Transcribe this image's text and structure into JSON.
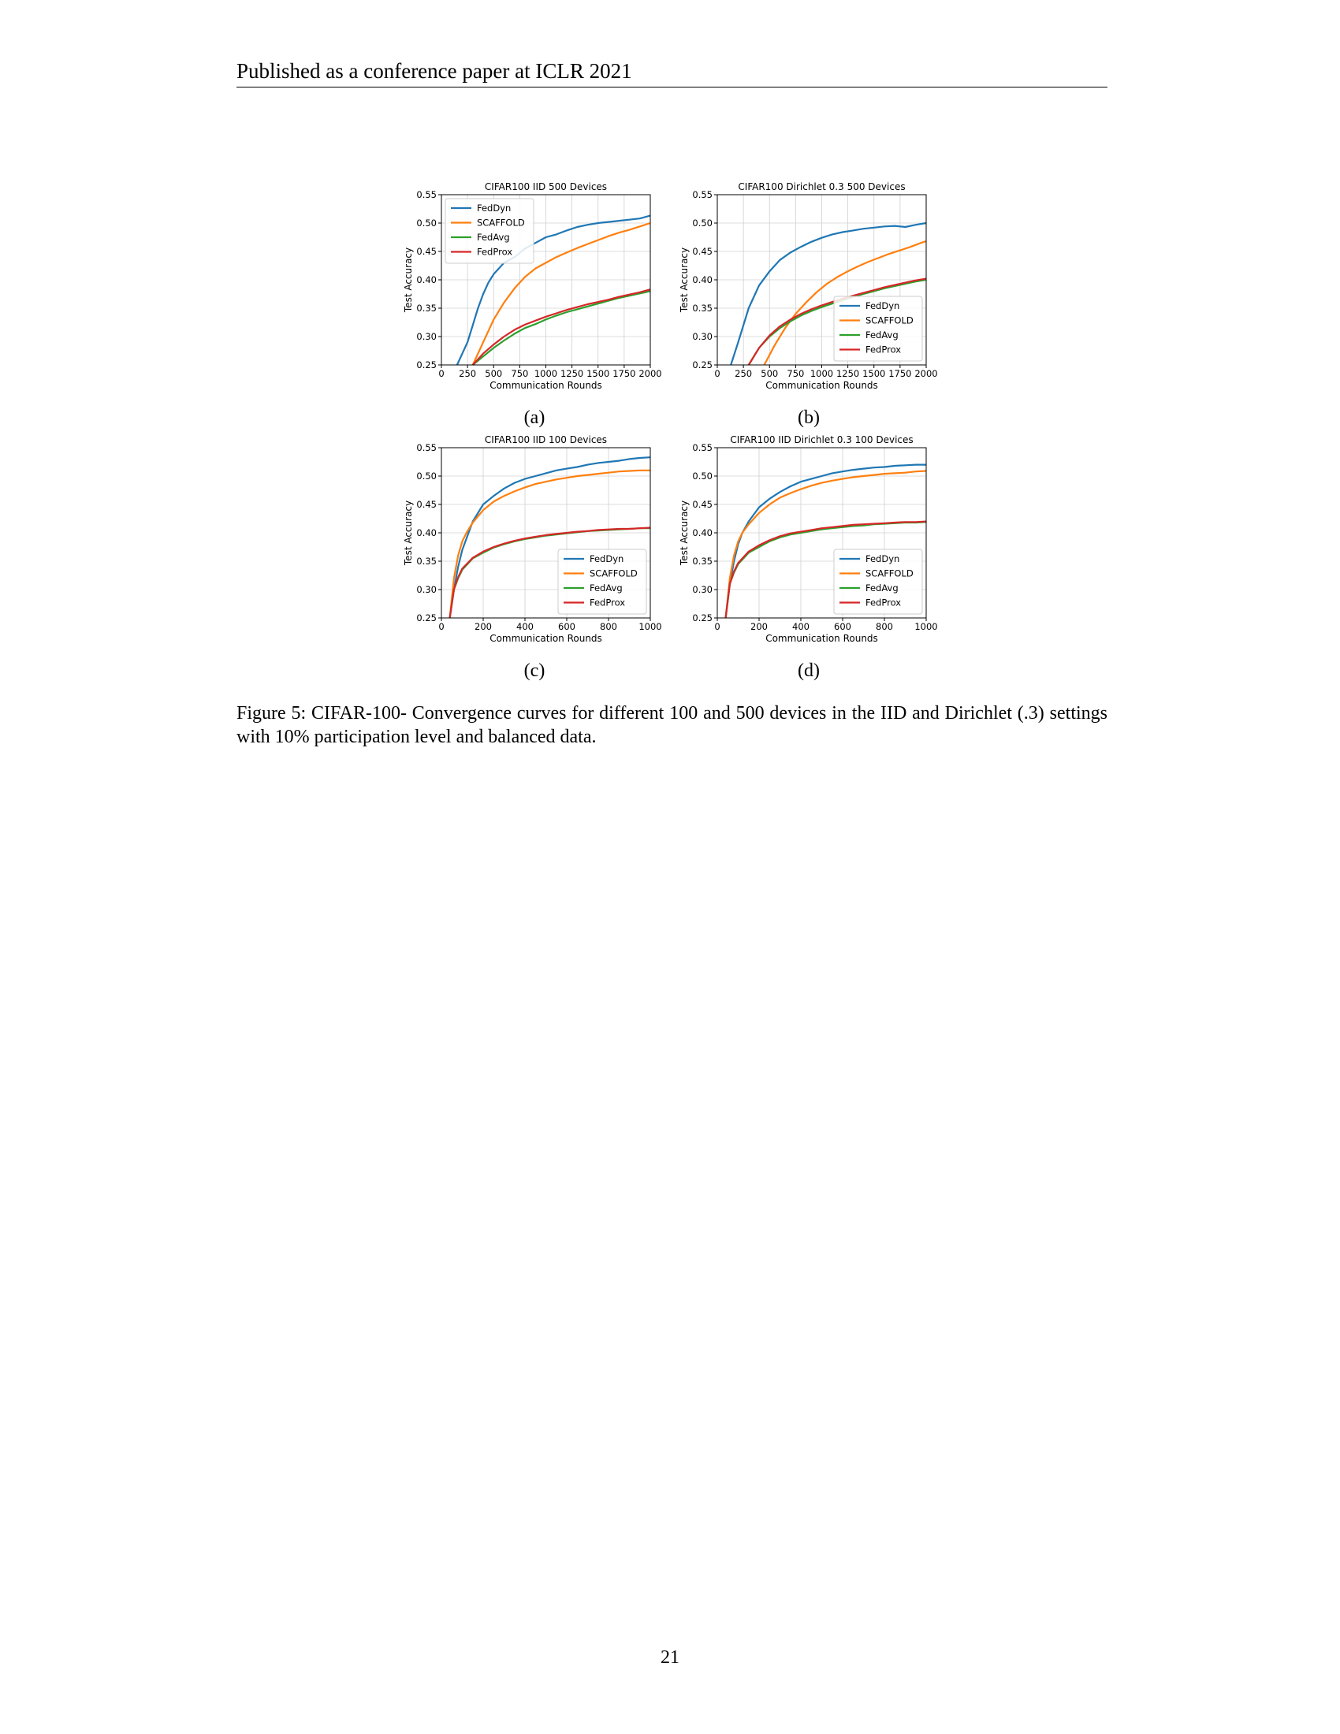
{
  "header": {
    "text": "Published as a conference paper at ICLR 2021"
  },
  "caption": {
    "text": "Figure 5: CIFAR-100- Convergence curves for different 100 and 500 devices in the IID and Dirichlet (.3) settings with 10% participation level and balanced data."
  },
  "page_number": "21",
  "colors": {
    "FedDyn": "#1f77b4",
    "SCAFFOLD": "#ff7f0e",
    "FedAvg": "#2ca02c",
    "FedProx": "#d62728"
  },
  "chart_data": [
    {
      "id": "a",
      "subcaption": "(a)",
      "type": "line",
      "title": "CIFAR100 IID 500 Devices",
      "xlabel": "Communication Rounds",
      "ylabel": "Test Accuracy",
      "xlim": [
        0,
        2000
      ],
      "ylim": [
        0.25,
        0.55
      ],
      "xticks": [
        0,
        250,
        500,
        750,
        1000,
        1250,
        1500,
        1750,
        2000
      ],
      "yticks": [
        0.25,
        0.3,
        0.35,
        0.4,
        0.45,
        0.5,
        0.55
      ],
      "legend_position": "upper-left",
      "grid": true,
      "series": [
        {
          "name": "FedDyn",
          "x": [
            150,
            200,
            250,
            300,
            350,
            400,
            450,
            500,
            550,
            600,
            650,
            700,
            800,
            900,
            1000,
            1100,
            1200,
            1300,
            1400,
            1500,
            1600,
            1700,
            1800,
            1900,
            2000
          ],
          "y": [
            0.25,
            0.27,
            0.29,
            0.32,
            0.35,
            0.375,
            0.395,
            0.41,
            0.42,
            0.43,
            0.435,
            0.44,
            0.455,
            0.465,
            0.475,
            0.48,
            0.487,
            0.493,
            0.497,
            0.5,
            0.502,
            0.504,
            0.506,
            0.508,
            0.513
          ]
        },
        {
          "name": "SCAFFOLD",
          "x": [
            300,
            400,
            500,
            600,
            700,
            800,
            900,
            1000,
            1100,
            1200,
            1300,
            1400,
            1500,
            1600,
            1700,
            1800,
            1900,
            2000
          ],
          "y": [
            0.25,
            0.29,
            0.33,
            0.36,
            0.385,
            0.405,
            0.42,
            0.43,
            0.44,
            0.448,
            0.456,
            0.463,
            0.47,
            0.477,
            0.483,
            0.488,
            0.494,
            0.5
          ]
        },
        {
          "name": "FedAvg",
          "x": [
            300,
            400,
            500,
            600,
            700,
            800,
            900,
            1000,
            1100,
            1200,
            1300,
            1400,
            1500,
            1600,
            1700,
            1800,
            1900,
            2000
          ],
          "y": [
            0.25,
            0.265,
            0.28,
            0.293,
            0.305,
            0.315,
            0.322,
            0.33,
            0.337,
            0.343,
            0.348,
            0.353,
            0.358,
            0.363,
            0.368,
            0.372,
            0.376,
            0.38
          ]
        },
        {
          "name": "FedProx",
          "x": [
            300,
            400,
            500,
            600,
            700,
            800,
            900,
            1000,
            1100,
            1200,
            1300,
            1400,
            1500,
            1600,
            1700,
            1800,
            1900,
            2000
          ],
          "y": [
            0.25,
            0.27,
            0.286,
            0.3,
            0.312,
            0.321,
            0.328,
            0.335,
            0.341,
            0.347,
            0.352,
            0.357,
            0.361,
            0.365,
            0.37,
            0.374,
            0.378,
            0.383
          ]
        }
      ]
    },
    {
      "id": "b",
      "subcaption": "(b)",
      "type": "line",
      "title": "CIFAR100 Dirichlet 0.3 500 Devices",
      "xlabel": "Communication Rounds",
      "ylabel": "Test Accuracy",
      "xlim": [
        0,
        2000
      ],
      "ylim": [
        0.25,
        0.55
      ],
      "xticks": [
        0,
        250,
        500,
        750,
        1000,
        1250,
        1500,
        1750,
        2000
      ],
      "yticks": [
        0.25,
        0.3,
        0.35,
        0.4,
        0.45,
        0.5,
        0.55
      ],
      "legend_position": "lower-right",
      "grid": true,
      "series": [
        {
          "name": "FedDyn",
          "x": [
            130,
            200,
            300,
            400,
            500,
            600,
            700,
            800,
            900,
            1000,
            1100,
            1200,
            1300,
            1400,
            1500,
            1600,
            1700,
            1800,
            1900,
            2000
          ],
          "y": [
            0.25,
            0.29,
            0.35,
            0.39,
            0.415,
            0.435,
            0.448,
            0.458,
            0.467,
            0.474,
            0.48,
            0.484,
            0.487,
            0.49,
            0.492,
            0.494,
            0.495,
            0.493,
            0.497,
            0.5
          ]
        },
        {
          "name": "SCAFFOLD",
          "x": [
            450,
            550,
            650,
            750,
            850,
            950,
            1050,
            1150,
            1250,
            1350,
            1450,
            1550,
            1650,
            1750,
            1850,
            1950,
            2000
          ],
          "y": [
            0.25,
            0.285,
            0.315,
            0.34,
            0.36,
            0.378,
            0.393,
            0.405,
            0.415,
            0.424,
            0.432,
            0.439,
            0.446,
            0.452,
            0.458,
            0.465,
            0.468
          ]
        },
        {
          "name": "FedAvg",
          "x": [
            300,
            400,
            500,
            600,
            700,
            800,
            900,
            1000,
            1100,
            1200,
            1300,
            1400,
            1500,
            1600,
            1700,
            1800,
            1900,
            2000
          ],
          "y": [
            0.25,
            0.28,
            0.3,
            0.315,
            0.327,
            0.337,
            0.345,
            0.352,
            0.358,
            0.364,
            0.37,
            0.375,
            0.38,
            0.385,
            0.389,
            0.393,
            0.397,
            0.4
          ]
        },
        {
          "name": "FedProx",
          "x": [
            300,
            400,
            500,
            600,
            700,
            800,
            900,
            1000,
            1100,
            1200,
            1300,
            1400,
            1500,
            1600,
            1700,
            1800,
            1900,
            2000
          ],
          "y": [
            0.25,
            0.28,
            0.302,
            0.318,
            0.33,
            0.34,
            0.348,
            0.355,
            0.361,
            0.367,
            0.372,
            0.377,
            0.382,
            0.387,
            0.391,
            0.395,
            0.399,
            0.402
          ]
        }
      ]
    },
    {
      "id": "c",
      "subcaption": "(c)",
      "type": "line",
      "title": "CIFAR100 IID 100 Devices",
      "xlabel": "Communication Rounds",
      "ylabel": "Test Accuracy",
      "xlim": [
        0,
        1000
      ],
      "ylim": [
        0.25,
        0.55
      ],
      "xticks": [
        0,
        200,
        400,
        600,
        800,
        1000
      ],
      "yticks": [
        0.25,
        0.3,
        0.35,
        0.4,
        0.45,
        0.5,
        0.55
      ],
      "legend_position": "lower-right",
      "grid": true,
      "series": [
        {
          "name": "FedDyn",
          "x": [
            40,
            60,
            80,
            100,
            120,
            150,
            200,
            250,
            300,
            350,
            400,
            450,
            500,
            550,
            600,
            650,
            700,
            750,
            800,
            850,
            900,
            950,
            1000
          ],
          "y": [
            0.25,
            0.3,
            0.34,
            0.37,
            0.39,
            0.42,
            0.45,
            0.465,
            0.478,
            0.488,
            0.495,
            0.5,
            0.505,
            0.51,
            0.513,
            0.516,
            0.52,
            0.523,
            0.525,
            0.527,
            0.53,
            0.532,
            0.533
          ]
        },
        {
          "name": "SCAFFOLD",
          "x": [
            40,
            60,
            80,
            100,
            120,
            150,
            200,
            250,
            300,
            350,
            400,
            450,
            500,
            550,
            600,
            650,
            700,
            750,
            800,
            850,
            900,
            950,
            1000
          ],
          "y": [
            0.25,
            0.32,
            0.36,
            0.385,
            0.4,
            0.418,
            0.44,
            0.455,
            0.465,
            0.473,
            0.48,
            0.486,
            0.49,
            0.494,
            0.497,
            0.5,
            0.502,
            0.504,
            0.506,
            0.508,
            0.509,
            0.51,
            0.51
          ]
        },
        {
          "name": "FedAvg",
          "x": [
            40,
            60,
            80,
            100,
            150,
            200,
            250,
            300,
            350,
            400,
            450,
            500,
            550,
            600,
            650,
            700,
            750,
            800,
            850,
            900,
            950,
            1000
          ],
          "y": [
            0.25,
            0.3,
            0.32,
            0.335,
            0.355,
            0.365,
            0.374,
            0.38,
            0.385,
            0.389,
            0.392,
            0.395,
            0.397,
            0.399,
            0.401,
            0.403,
            0.404,
            0.405,
            0.406,
            0.407,
            0.408,
            0.408
          ]
        },
        {
          "name": "FedProx",
          "x": [
            40,
            60,
            80,
            100,
            150,
            200,
            250,
            300,
            350,
            400,
            450,
            500,
            550,
            600,
            650,
            700,
            750,
            800,
            850,
            900,
            950,
            1000
          ],
          "y": [
            0.25,
            0.3,
            0.322,
            0.337,
            0.356,
            0.367,
            0.375,
            0.381,
            0.386,
            0.39,
            0.393,
            0.396,
            0.398,
            0.4,
            0.402,
            0.403,
            0.405,
            0.406,
            0.407,
            0.407,
            0.408,
            0.409
          ]
        }
      ]
    },
    {
      "id": "d",
      "subcaption": "(d)",
      "type": "line",
      "title": "CIFAR100 IID Dirichlet 0.3 100 Devices",
      "xlabel": "Communication Rounds",
      "ylabel": "Test Accuracy",
      "xlim": [
        0,
        1000
      ],
      "ylim": [
        0.25,
        0.55
      ],
      "xticks": [
        0,
        200,
        400,
        600,
        800,
        1000
      ],
      "yticks": [
        0.25,
        0.3,
        0.35,
        0.4,
        0.45,
        0.5,
        0.55
      ],
      "legend_position": "lower-right",
      "grid": true,
      "series": [
        {
          "name": "FedDyn",
          "x": [
            40,
            60,
            80,
            100,
            120,
            150,
            200,
            250,
            300,
            350,
            400,
            450,
            500,
            550,
            600,
            650,
            700,
            750,
            800,
            850,
            900,
            950,
            1000
          ],
          "y": [
            0.25,
            0.31,
            0.35,
            0.38,
            0.4,
            0.42,
            0.445,
            0.46,
            0.472,
            0.482,
            0.49,
            0.495,
            0.5,
            0.505,
            0.508,
            0.511,
            0.513,
            0.515,
            0.516,
            0.518,
            0.519,
            0.52,
            0.52
          ]
        },
        {
          "name": "SCAFFOLD",
          "x": [
            40,
            60,
            80,
            100,
            120,
            150,
            200,
            250,
            300,
            350,
            400,
            450,
            500,
            550,
            600,
            650,
            700,
            750,
            800,
            850,
            900,
            950,
            1000
          ],
          "y": [
            0.25,
            0.32,
            0.36,
            0.385,
            0.4,
            0.415,
            0.435,
            0.45,
            0.462,
            0.47,
            0.477,
            0.483,
            0.488,
            0.492,
            0.495,
            0.498,
            0.5,
            0.502,
            0.504,
            0.505,
            0.506,
            0.508,
            0.509
          ]
        },
        {
          "name": "FedAvg",
          "x": [
            40,
            60,
            80,
            100,
            150,
            200,
            250,
            300,
            350,
            400,
            450,
            500,
            550,
            600,
            650,
            700,
            750,
            800,
            850,
            900,
            950,
            1000
          ],
          "y": [
            0.25,
            0.31,
            0.33,
            0.345,
            0.365,
            0.375,
            0.385,
            0.392,
            0.397,
            0.4,
            0.403,
            0.406,
            0.408,
            0.41,
            0.412,
            0.413,
            0.415,
            0.416,
            0.417,
            0.418,
            0.418,
            0.419
          ]
        },
        {
          "name": "FedProx",
          "x": [
            40,
            60,
            80,
            100,
            150,
            200,
            250,
            300,
            350,
            400,
            450,
            500,
            550,
            600,
            650,
            700,
            750,
            800,
            850,
            900,
            950,
            1000
          ],
          "y": [
            0.25,
            0.31,
            0.332,
            0.347,
            0.367,
            0.378,
            0.387,
            0.394,
            0.399,
            0.402,
            0.405,
            0.408,
            0.41,
            0.412,
            0.414,
            0.415,
            0.416,
            0.417,
            0.418,
            0.419,
            0.419,
            0.42
          ]
        }
      ]
    }
  ]
}
